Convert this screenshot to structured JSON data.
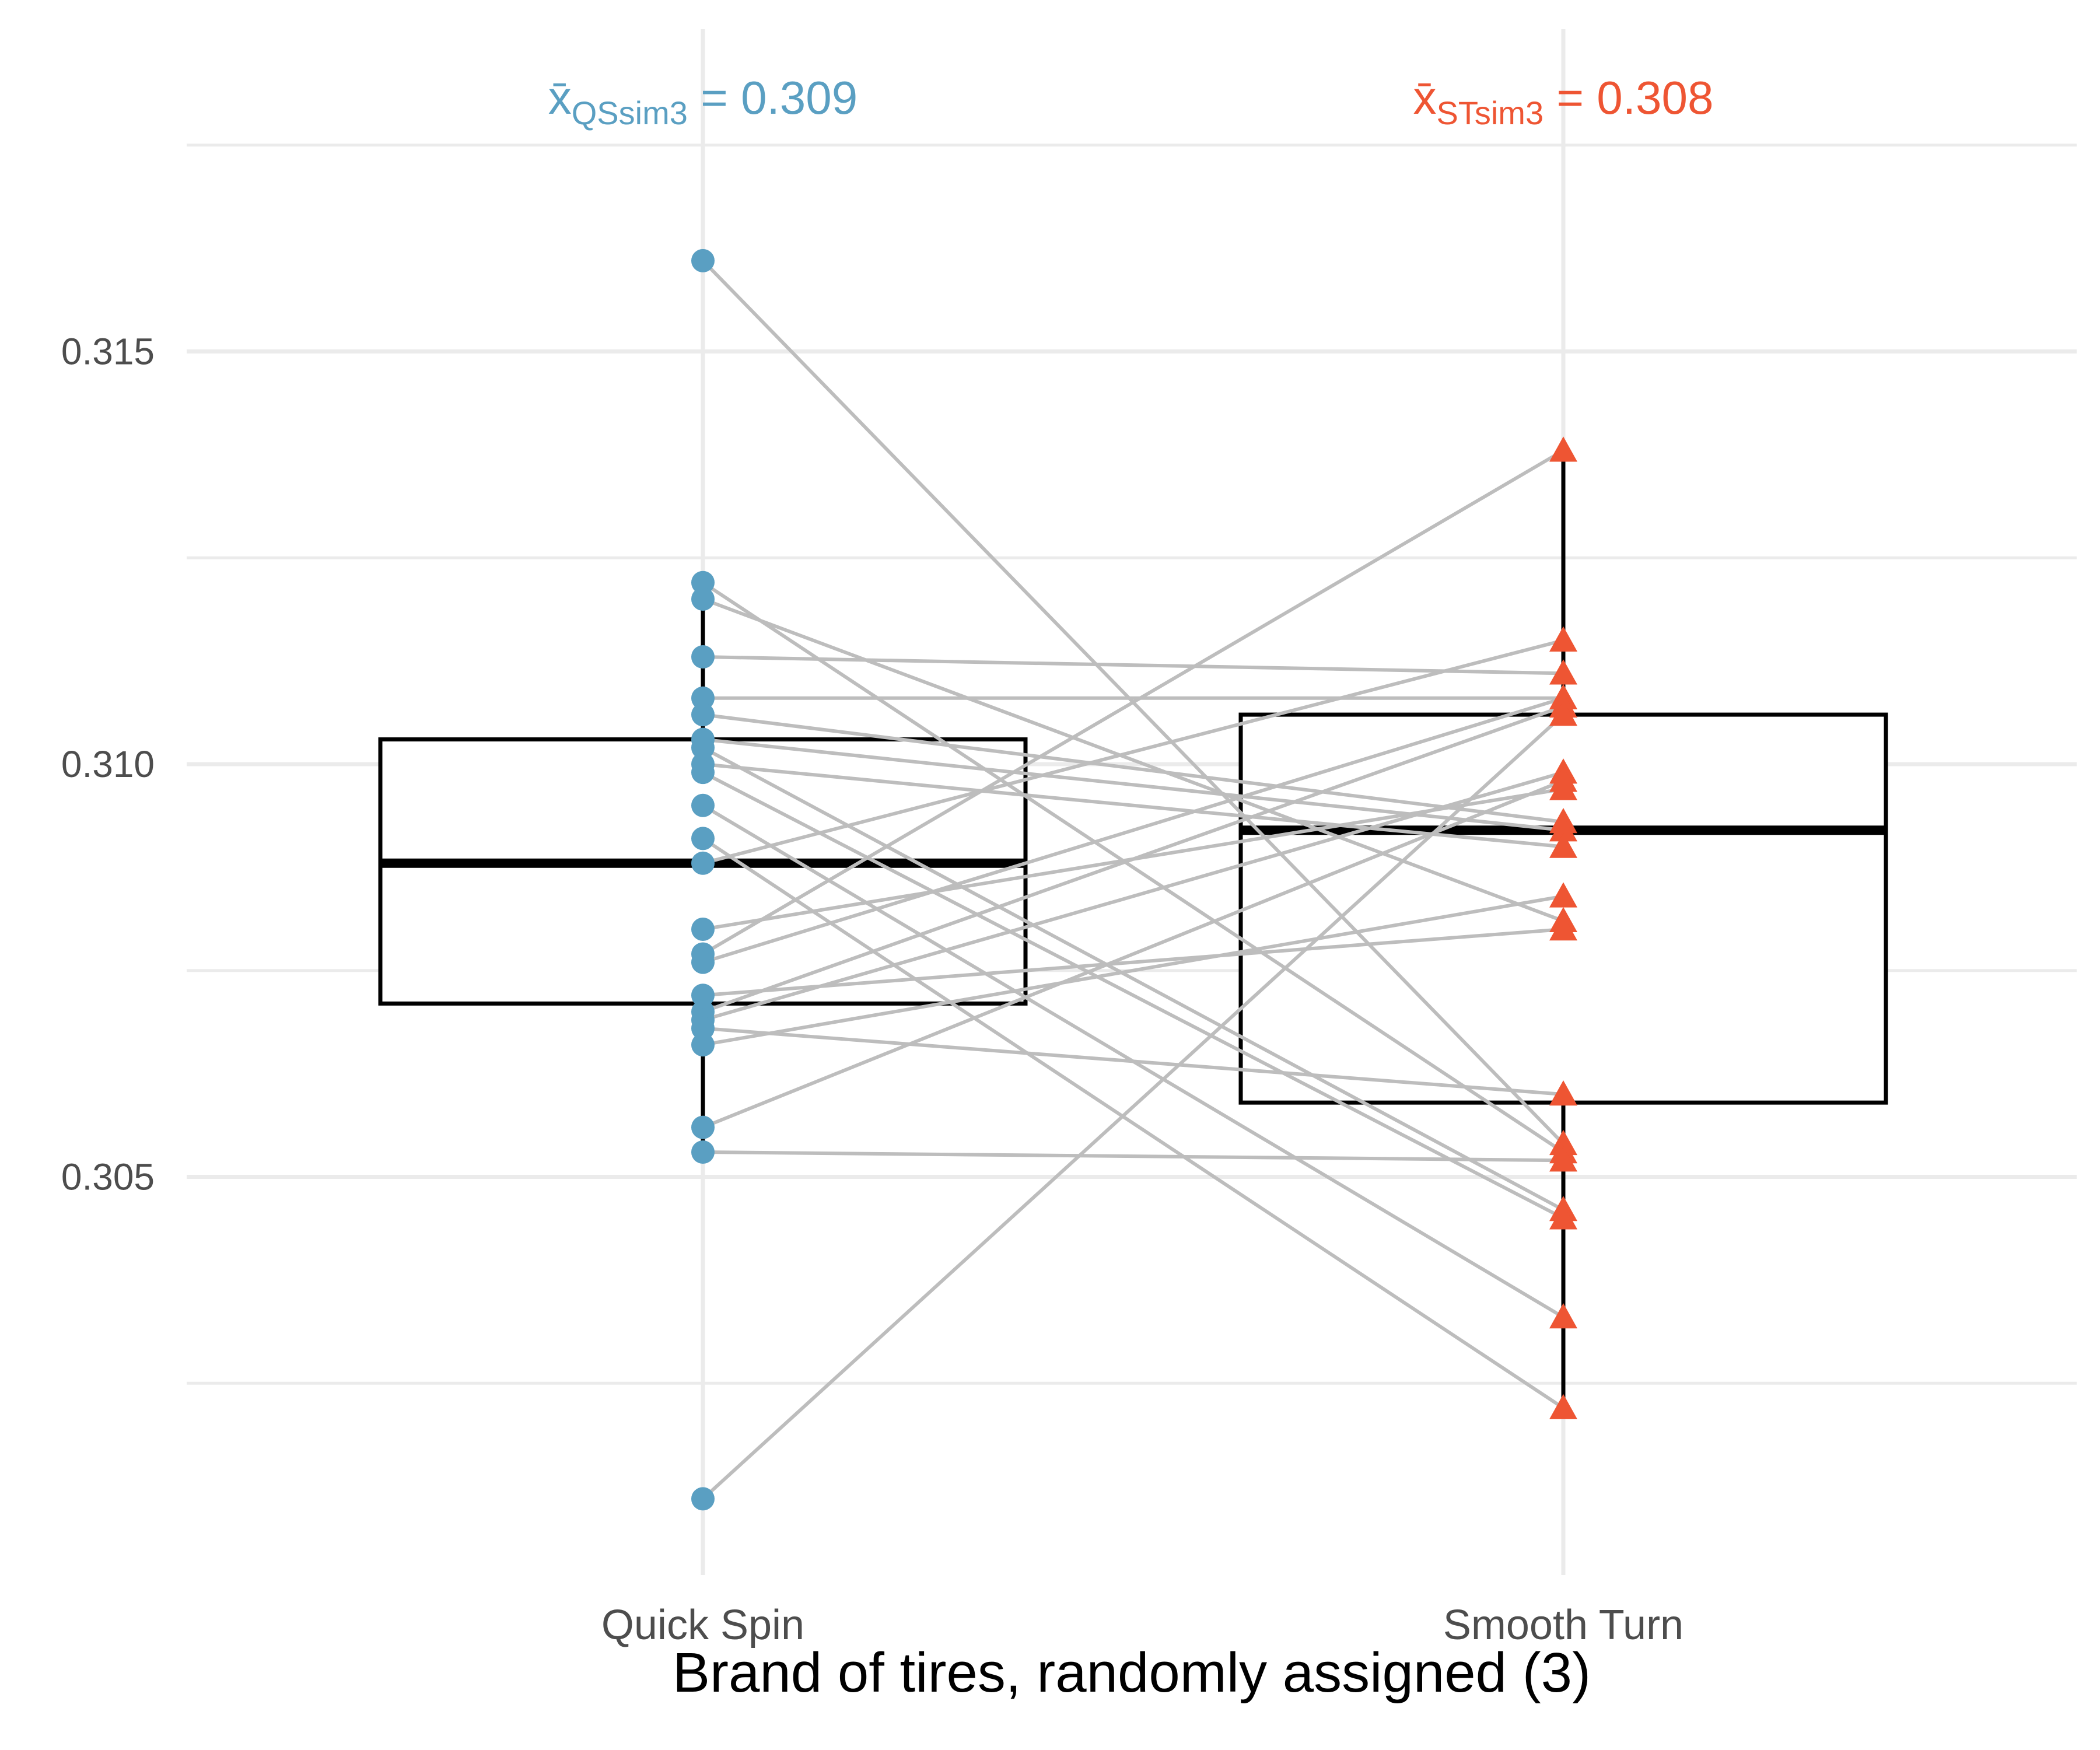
{
  "chart_data": {
    "type": "scatter",
    "subtype": "paired dot plot with boxplots",
    "title": "",
    "xlabel": "Brand of tires, randomly assigned (3)",
    "ylabel": "",
    "categories": [
      "Quick Spin",
      "Smooth Turn"
    ],
    "ylim": [
      0.3005,
      0.3175
    ],
    "y_ticks": [
      0.305,
      0.31,
      0.315
    ],
    "y_tick_labels": [
      "0.305",
      "0.310",
      "0.315"
    ],
    "grid": true,
    "legend": "none",
    "colors": {
      "quick_spin": "#5a9fc2",
      "smooth_turn": "#ee5533",
      "pair_line": "#bdbdbd",
      "grid": "#ebebeb",
      "box": "#000000"
    },
    "annotations": [
      {
        "category": "Quick Spin",
        "symbol": "x̄",
        "subscript": "QSsim3",
        "eq": " = 0.309",
        "color": "#5a9fc2"
      },
      {
        "category": "Smooth Turn",
        "symbol": "x̄",
        "subscript": "STsim3",
        "eq": " = 0.308",
        "color": "#ee5533"
      }
    ],
    "boxplots": [
      {
        "category": "Quick Spin",
        "q1": 0.3071,
        "median": 0.3088,
        "q3": 0.3103,
        "whisker_low": 0.3053,
        "whisker_high": 0.3122
      },
      {
        "category": "Smooth Turn",
        "q1": 0.3059,
        "median": 0.3092,
        "q3": 0.3106,
        "whisker_low": 0.3022,
        "whisker_high": 0.3138
      }
    ],
    "pairs": [
      {
        "quick_spin": 0.3161,
        "smooth_turn": 0.3054
      },
      {
        "quick_spin": 0.3122,
        "smooth_turn": 0.3053
      },
      {
        "quick_spin": 0.312,
        "smooth_turn": 0.3081
      },
      {
        "quick_spin": 0.3113,
        "smooth_turn": 0.3111
      },
      {
        "quick_spin": 0.3108,
        "smooth_turn": 0.3108
      },
      {
        "quick_spin": 0.3106,
        "smooth_turn": 0.3093
      },
      {
        "quick_spin": 0.3103,
        "smooth_turn": 0.3092
      },
      {
        "quick_spin": 0.3102,
        "smooth_turn": 0.3046
      },
      {
        "quick_spin": 0.31,
        "smooth_turn": 0.309
      },
      {
        "quick_spin": 0.3099,
        "smooth_turn": 0.3045
      },
      {
        "quick_spin": 0.3095,
        "smooth_turn": 0.3033
      },
      {
        "quick_spin": 0.3091,
        "smooth_turn": 0.3022
      },
      {
        "quick_spin": 0.3088,
        "smooth_turn": 0.3115
      },
      {
        "quick_spin": 0.308,
        "smooth_turn": 0.3097
      },
      {
        "quick_spin": 0.3077,
        "smooth_turn": 0.3138
      },
      {
        "quick_spin": 0.3076,
        "smooth_turn": 0.3108
      },
      {
        "quick_spin": 0.3072,
        "smooth_turn": 0.308
      },
      {
        "quick_spin": 0.307,
        "smooth_turn": 0.3107
      },
      {
        "quick_spin": 0.3069,
        "smooth_turn": 0.3099
      },
      {
        "quick_spin": 0.3066,
        "smooth_turn": 0.3084
      },
      {
        "quick_spin": 0.3056,
        "smooth_turn": 0.3098
      },
      {
        "quick_spin": 0.3053,
        "smooth_turn": 0.3052
      },
      {
        "quick_spin": 0.3068,
        "smooth_turn": 0.306
      },
      {
        "quick_spin": 0.3011,
        "smooth_turn": 0.3106
      }
    ]
  }
}
